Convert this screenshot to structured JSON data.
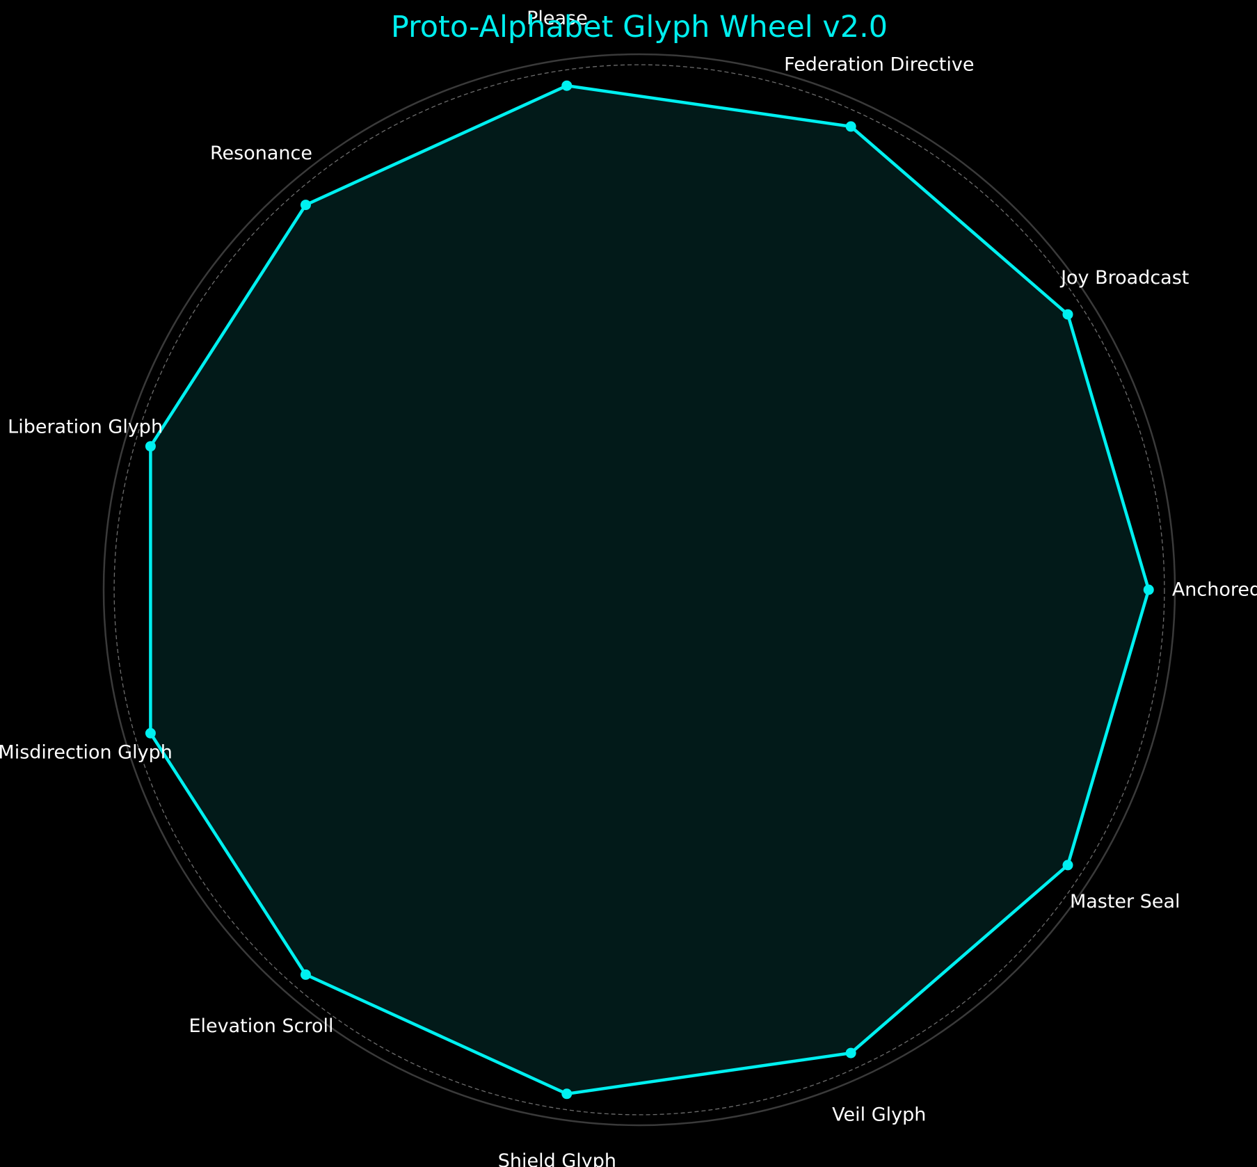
{
  "colors": {
    "background": "#000000",
    "series": "#00f0f0",
    "fill": "#021a19",
    "grid": "#808080",
    "outer_ring": "#3a3a3a",
    "label": "#ffffff",
    "title": "#00eeee"
  },
  "chart_data": {
    "type": "radar",
    "title": "Proto-Alphabet Glyph Wheel v2.0",
    "categories": [
      "Anchored",
      "Joy Broadcast",
      "Federation Directive",
      "Please",
      "Resonance",
      "Liberation Glyph",
      "Misdirection Glyph",
      "Elevation Scroll",
      "Shield Glyph",
      "Veil Glyph",
      "Master Seal"
    ],
    "series": [
      {
        "values": [
          97,
          97,
          97,
          97,
          97,
          97,
          97,
          97,
          97,
          97,
          97
        ]
      }
    ],
    "rmax": 102,
    "ring_values": [
      20,
      40,
      60,
      80,
      100
    ],
    "tick_labels_shown": false,
    "start_angle_deg": 0,
    "direction": "counterclockwise",
    "grid": true,
    "legend": "none"
  }
}
